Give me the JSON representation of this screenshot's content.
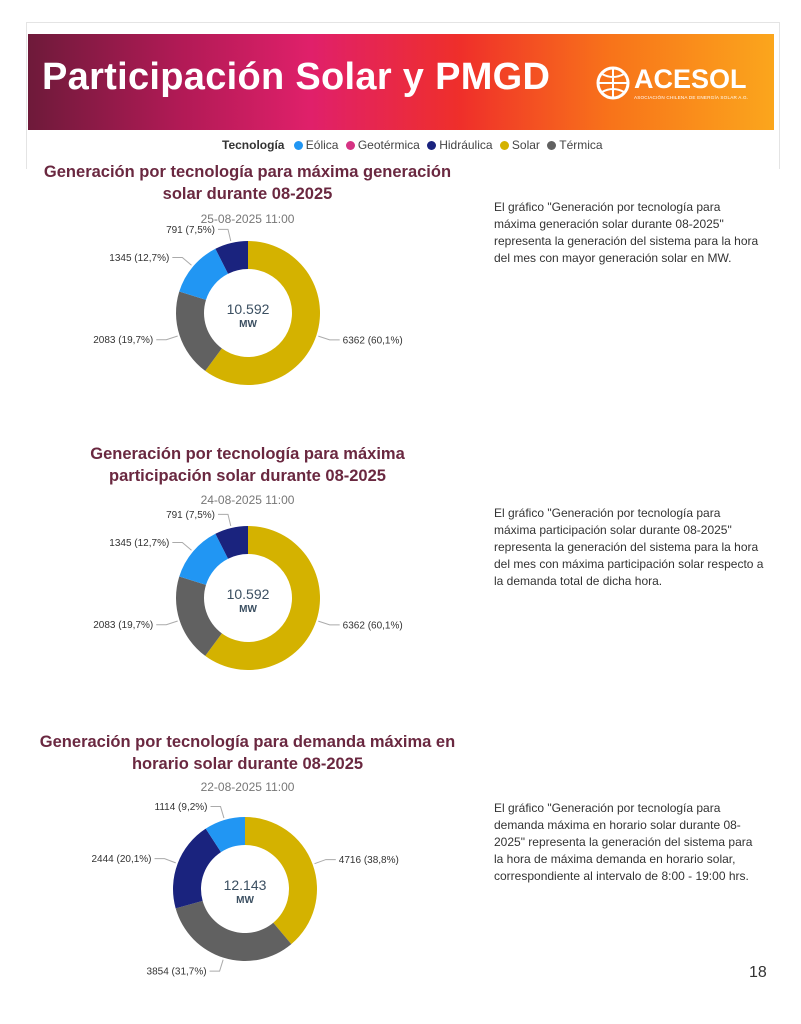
{
  "header": {
    "title": "Participación Solar y PMGD",
    "logo_text": "ACESOL",
    "logo_tagline": "ASOCIACIÓN CHILENA DE ENERGÍA SOLAR A.G."
  },
  "legend": {
    "title": "Tecnología",
    "items": [
      {
        "label": "Eólica",
        "color": "#2196f3"
      },
      {
        "label": "Geotérmica",
        "color": "#d63384"
      },
      {
        "label": "Hidráulica",
        "color": "#1a237e"
      },
      {
        "label": "Solar",
        "color": "#d4b200"
      },
      {
        "label": "Térmica",
        "color": "#616161"
      }
    ]
  },
  "charts": [
    {
      "title_line1": "Generación por tecnología para máxima generación",
      "title_line2": "solar durante 08-2025",
      "date": "25-08-2025 11:00",
      "description": "El gráfico \"Generación por tecnología para máxima generación solar durante 08-2025\" representa la generación del sistema para la hora del mes con mayor generación solar en MW."
    },
    {
      "title_line1": "Generación por tecnología para máxima",
      "title_line2": "participación solar durante 08-2025",
      "date": "24-08-2025 11:00",
      "description": "El gráfico \"Generación por tecnología para máxima participación solar durante 08-2025\" representa la generación del sistema para la hora del mes con máxima participación solar respecto a la demanda total de dicha hora."
    },
    {
      "title_line1": "Generación por tecnología para demanda máxima en",
      "title_line2": "horario solar durante 08-2025",
      "date": "22-08-2025 11:00",
      "description": "El gráfico \"Generación por tecnología para demanda máxima en horario solar durante 08-2025\" representa la generación del sistema para la hora de máxima demanda en horario solar, correspondiente al intervalo de 8:00 - 19:00 hrs."
    }
  ],
  "chart_data": [
    {
      "type": "pie",
      "donut": true,
      "center_value": "10.592",
      "center_unit": "MW",
      "slices": [
        {
          "name": "Solar",
          "value": 6362,
          "label": "6362 (60,1%)",
          "color": "#d4b200"
        },
        {
          "name": "Térmica",
          "value": 2083,
          "label": "2083 (19,7%)",
          "color": "#616161"
        },
        {
          "name": "Eólica",
          "value": 1345,
          "label": "1345 (12,7%)",
          "color": "#2196f3"
        },
        {
          "name": "Hidráulica",
          "value": 791,
          "label": "791 (7,5%)",
          "color": "#1a237e"
        }
      ]
    },
    {
      "type": "pie",
      "donut": true,
      "center_value": "10.592",
      "center_unit": "MW",
      "slices": [
        {
          "name": "Solar",
          "value": 6362,
          "label": "6362 (60,1%)",
          "color": "#d4b200"
        },
        {
          "name": "Térmica",
          "value": 2083,
          "label": "2083 (19,7%)",
          "color": "#616161"
        },
        {
          "name": "Eólica",
          "value": 1345,
          "label": "1345 (12,7%)",
          "color": "#2196f3"
        },
        {
          "name": "Hidráulica",
          "value": 791,
          "label": "791 (7,5%)",
          "color": "#1a237e"
        }
      ]
    },
    {
      "type": "pie",
      "donut": true,
      "center_value": "12.143",
      "center_unit": "MW",
      "slices": [
        {
          "name": "Solar",
          "value": 4716,
          "label": "4716 (38,8%)",
          "color": "#d4b200"
        },
        {
          "name": "Térmica",
          "value": 3854,
          "label": "3854 (31,7%)",
          "color": "#616161"
        },
        {
          "name": "Hidráulica",
          "value": 2444,
          "label": "2444 (20,1%)",
          "color": "#1a237e"
        },
        {
          "name": "Eólica",
          "value": 1114,
          "label": "1114 (9,2%)",
          "color": "#2196f3"
        }
      ]
    }
  ],
  "page_number": "18"
}
